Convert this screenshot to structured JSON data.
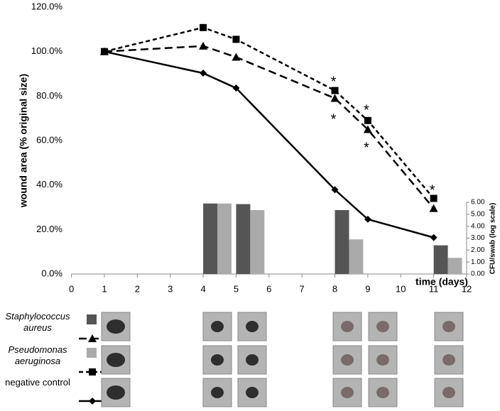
{
  "chart_data": {
    "type": "line",
    "x_label": "time (days)",
    "y_label": "wound area (% original size)",
    "y2_label": "CFU/swab (log scale)",
    "xlim": [
      0,
      12
    ],
    "xticks": [
      0,
      1,
      2,
      3,
      4,
      5,
      6,
      7,
      8,
      9,
      10,
      11,
      12
    ],
    "ylim": [
      0,
      120
    ],
    "yticks": [
      {
        "value": 0,
        "label": "0.0%"
      },
      {
        "value": 20,
        "label": "20.0%"
      },
      {
        "value": 40,
        "label": "40.0%"
      },
      {
        "value": 60,
        "label": "60.0%"
      },
      {
        "value": 80,
        "label": "80.0%"
      },
      {
        "value": 100,
        "label": "100.0%"
      },
      {
        "value": 120,
        "label": "120.0%"
      }
    ],
    "y2lim": [
      0,
      6
    ],
    "y2ticks": [
      {
        "value": 0,
        "label": "0.00"
      },
      {
        "value": 1,
        "label": "1.00"
      },
      {
        "value": 2,
        "label": "2.00"
      },
      {
        "value": 3,
        "label": "3.00"
      },
      {
        "value": 4,
        "label": "4.00"
      },
      {
        "value": 5,
        "label": "5.00"
      },
      {
        "value": 6,
        "label": "6.00"
      }
    ],
    "x": [
      1,
      4,
      5,
      8,
      9,
      11
    ],
    "bar_x": [
      4,
      5,
      8,
      11
    ],
    "series": [
      {
        "name": "Staphylococcus aureus",
        "color": "#000000",
        "marker": "triangle",
        "dash": "11,6",
        "values": [
          100,
          102.5,
          97.5,
          79,
          65,
          29.5
        ],
        "bar_color": "#555555",
        "bar_values": [
          5.9,
          5.85,
          5.35,
          2.4
        ]
      },
      {
        "name": "Pseudomonas aeruginosa",
        "color": "#000000",
        "marker": "square",
        "dash": "6,4",
        "values": [
          100,
          110.8,
          105.5,
          82.5,
          69,
          34
        ],
        "bar_color": "#aaaaaa",
        "bar_values": [
          5.9,
          5.35,
          2.9,
          1.35
        ]
      },
      {
        "name": "negative control",
        "color": "#000000",
        "marker": "diamond",
        "dash": "none",
        "values": [
          100,
          90.3,
          83.6,
          37.9,
          24.6,
          16.4
        ]
      }
    ],
    "annotations": [
      {
        "text": "*",
        "x": 8,
        "y": 87.4
      },
      {
        "text": "*",
        "x": 8,
        "y": 70.5
      },
      {
        "text": "*",
        "x": 9,
        "y": 74.6
      },
      {
        "text": "*",
        "x": 9,
        "y": 57.7
      },
      {
        "text": "*",
        "x": 11,
        "y": 38.6
      }
    ]
  }
}
